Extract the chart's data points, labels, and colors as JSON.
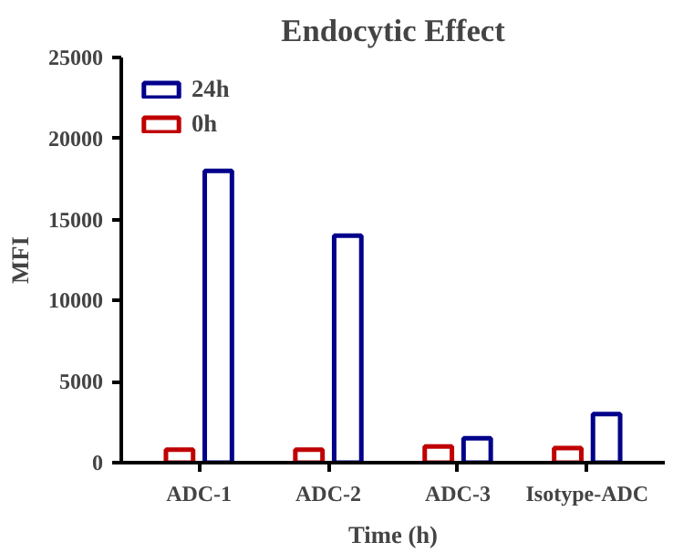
{
  "chart_data": {
    "type": "bar",
    "title": "Endocytic Effect",
    "xlabel": "Time (h)",
    "ylabel": "MFI",
    "categories": [
      "ADC-1",
      "ADC-2",
      "ADC-3",
      "Isotype-ADC"
    ],
    "series": [
      {
        "name": "0h",
        "color": "#c00000",
        "values": [
          800,
          800,
          1000,
          900
        ]
      },
      {
        "name": "24h",
        "color": "#00008b",
        "values": [
          18000,
          14000,
          1500,
          3000
        ]
      }
    ],
    "ylim": [
      0,
      25000
    ],
    "yticks": [
      0,
      5000,
      10000,
      15000,
      20000,
      25000
    ],
    "grid": false,
    "legend": "top left"
  }
}
